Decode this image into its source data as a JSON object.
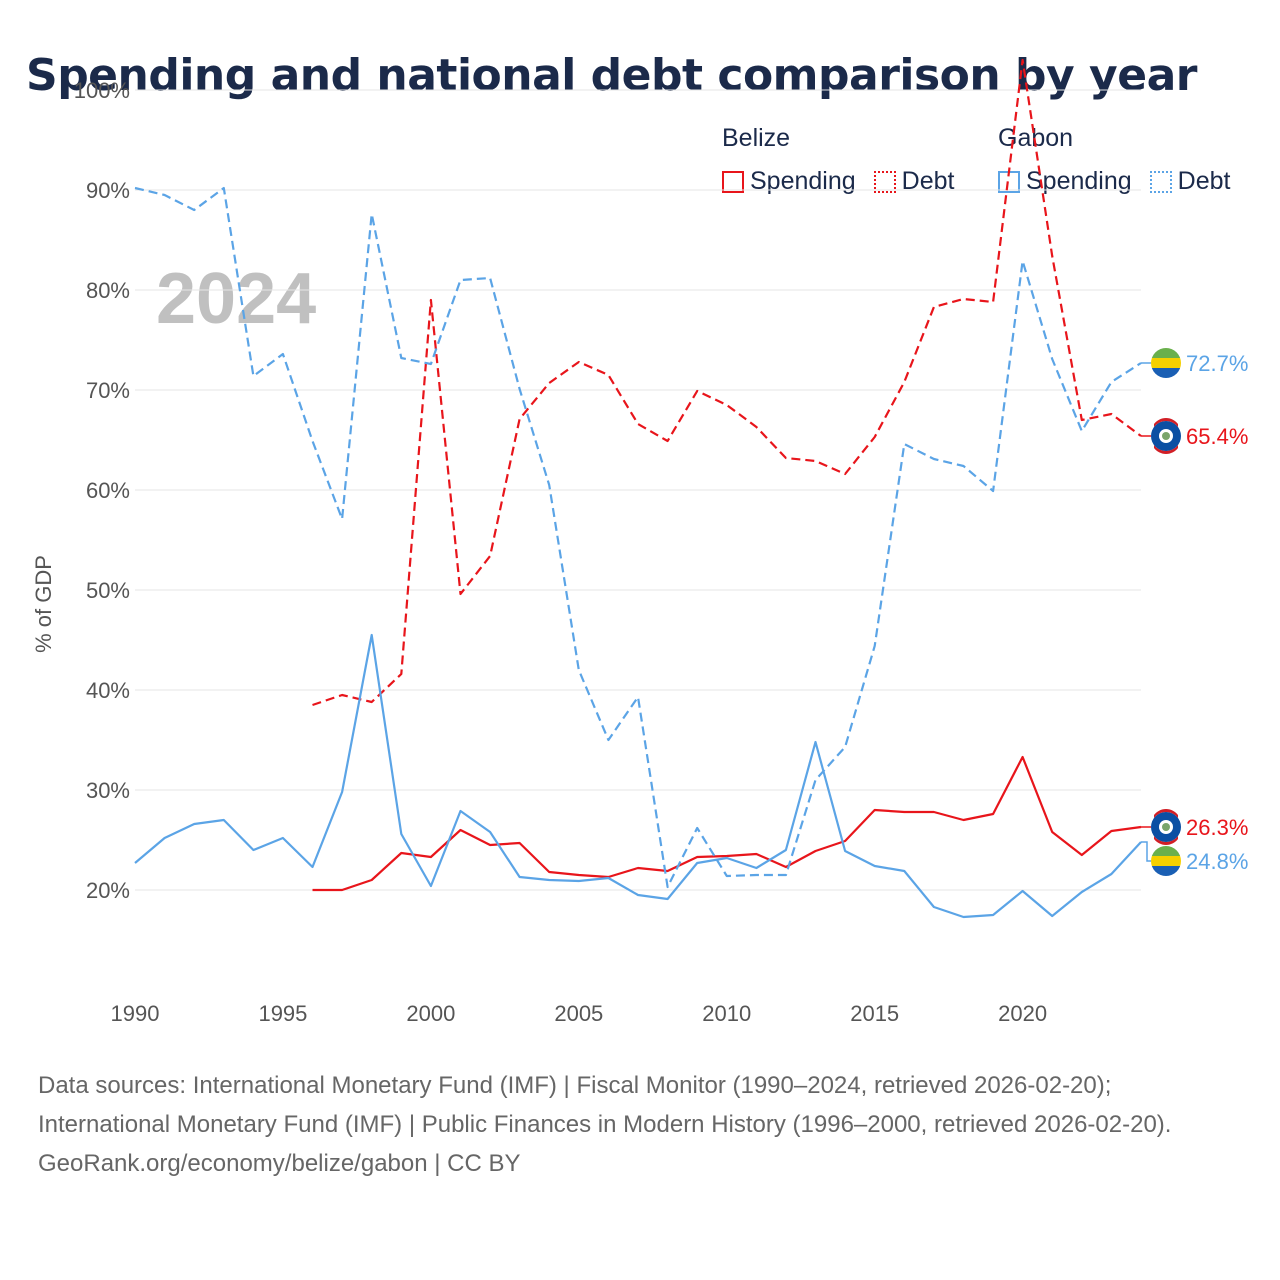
{
  "title": "Spending and national debt comparison by year",
  "legend": {
    "groups": [
      {
        "country": "Belize",
        "color": "#e8151b",
        "spending": "Spending",
        "debt": "Debt"
      },
      {
        "country": "Gabon",
        "color": "#5ba4e6",
        "spending": "Spending",
        "debt": "Debt"
      }
    ]
  },
  "chart_data": {
    "type": "line",
    "year_label": "2024",
    "ylabel": "% of GDP",
    "ylim": [
      10,
      104
    ],
    "xlim": [
      1990,
      2024
    ],
    "y_ticks": [
      20,
      30,
      40,
      50,
      60,
      70,
      80,
      90,
      100
    ],
    "y_tick_labels": [
      "20%",
      "30%",
      "40%",
      "50%",
      "60%",
      "70%",
      "80%",
      "90%",
      "100%"
    ],
    "x_ticks": [
      1990,
      1995,
      2000,
      2005,
      2010,
      2015,
      2020
    ],
    "x_tick_labels": [
      "1990",
      "1995",
      "2000",
      "2005",
      "2010",
      "2015",
      "2020"
    ],
    "series": [
      {
        "name": "Belize Spending",
        "country": "Belize",
        "kind": "spending",
        "color": "#e8151b",
        "dashed": false,
        "x": [
          1996,
          1997,
          1998,
          1999,
          2000,
          2001,
          2002,
          2003,
          2004,
          2005,
          2006,
          2007,
          2008,
          2009,
          2010,
          2011,
          2012,
          2013,
          2014,
          2015,
          2016,
          2017,
          2018,
          2019,
          2020,
          2021,
          2022,
          2023,
          2024
        ],
        "values": [
          20.0,
          20.0,
          21.0,
          23.7,
          23.3,
          26.0,
          24.5,
          24.7,
          21.8,
          21.5,
          21.3,
          22.2,
          21.9,
          23.3,
          23.4,
          23.6,
          22.3,
          23.9,
          24.9,
          28.0,
          27.8,
          27.8,
          27.0,
          27.6,
          33.3,
          25.8,
          23.5,
          25.9,
          26.3
        ],
        "end_label": "26.3%"
      },
      {
        "name": "Belize Debt",
        "country": "Belize",
        "kind": "debt",
        "color": "#e8151b",
        "dashed": true,
        "x": [
          1996,
          1997,
          1998,
          1999,
          2000,
          2001,
          2002,
          2003,
          2004,
          2005,
          2006,
          2007,
          2008,
          2009,
          2010,
          2011,
          2012,
          2013,
          2014,
          2015,
          2016,
          2017,
          2018,
          2019,
          2020,
          2021,
          2022,
          2023,
          2024
        ],
        "values": [
          38.5,
          39.5,
          38.8,
          41.6,
          79.0,
          49.6,
          53.4,
          67.1,
          70.7,
          72.8,
          71.5,
          66.6,
          64.9,
          69.9,
          68.5,
          66.3,
          63.2,
          62.9,
          61.6,
          65.3,
          70.8,
          78.3,
          79.1,
          78.8,
          103.0,
          83.4,
          67.0,
          67.6,
          65.4
        ],
        "end_label": "65.4%"
      },
      {
        "name": "Gabon Spending",
        "country": "Gabon",
        "kind": "spending",
        "color": "#5ba4e6",
        "dashed": false,
        "x": [
          1990,
          1991,
          1992,
          1993,
          1994,
          1995,
          1996,
          1997,
          1998,
          1999,
          2000,
          2001,
          2002,
          2003,
          2004,
          2005,
          2006,
          2007,
          2008,
          2009,
          2010,
          2011,
          2012,
          2013,
          2014,
          2015,
          2016,
          2017,
          2018,
          2019,
          2020,
          2021,
          2022,
          2023,
          2024
        ],
        "values": [
          22.7,
          25.2,
          26.6,
          27.0,
          24.0,
          25.2,
          22.3,
          29.8,
          45.5,
          25.6,
          20.4,
          27.9,
          25.8,
          21.3,
          21.0,
          20.9,
          21.2,
          19.5,
          19.1,
          22.7,
          23.2,
          22.2,
          24.0,
          34.8,
          23.9,
          22.4,
          21.9,
          18.3,
          17.3,
          17.5,
          19.9,
          17.4,
          19.8,
          21.6,
          24.8
        ],
        "end_label": "24.8%"
      },
      {
        "name": "Gabon Debt",
        "country": "Gabon",
        "kind": "debt",
        "color": "#5ba4e6",
        "dashed": true,
        "x": [
          1990,
          1991,
          1992,
          1993,
          1994,
          1995,
          1996,
          1997,
          1998,
          1999,
          2000,
          2001,
          2002,
          2003,
          2004,
          2005,
          2006,
          2007,
          2008,
          2009,
          2010,
          2011,
          2012,
          2013,
          2014,
          2015,
          2016,
          2017,
          2018,
          2019,
          2020,
          2021,
          2022,
          2023,
          2024
        ],
        "values": [
          90.2,
          89.5,
          88.0,
          90.2,
          71.4,
          73.6,
          64.9,
          57.1,
          87.6,
          73.2,
          72.6,
          81.0,
          81.2,
          70.1,
          60.5,
          42.0,
          35.0,
          39.3,
          20.3,
          26.2,
          21.4,
          21.5,
          21.5,
          31.0,
          34.3,
          44.4,
          64.6,
          63.1,
          62.4,
          59.9,
          82.9,
          73.1,
          65.9,
          70.8,
          72.7
        ],
        "end_label": "72.7%"
      }
    ]
  },
  "footer": {
    "sources": "Data sources: International Monetary Fund (IMF) | Fiscal Monitor (1990–2024, retrieved 2026-02-20); International Monetary Fund (IMF) | Public Finances in Modern History (1996–2000, retrieved 2026-02-20).",
    "credit": "GeoRank.org/economy/belize/gabon | CC BY"
  }
}
